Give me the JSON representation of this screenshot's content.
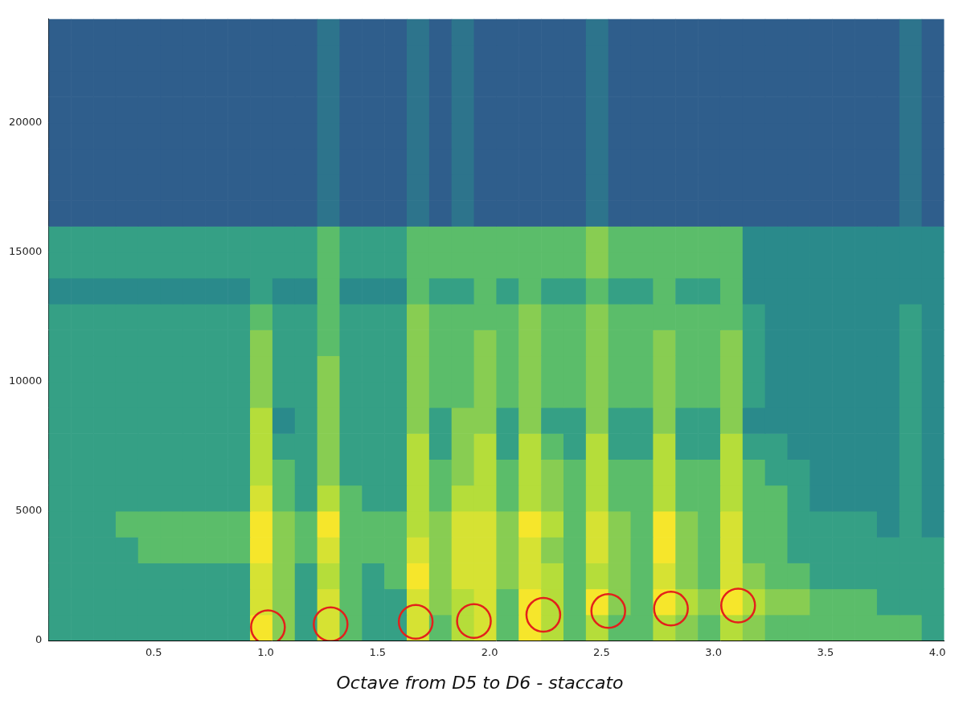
{
  "chart_data": {
    "type": "heatmap",
    "title": "Octave from D5 to D6 - staccato",
    "xlim": [
      0.03,
      4.03
    ],
    "ylim": [
      0,
      24000
    ],
    "xticks": [
      0.5,
      {
        "value": 1,
        "label": "1.0"
      },
      1.5,
      {
        "value": 2,
        "label": "2.0"
      },
      2.5,
      {
        "value": 3,
        "label": "3.0"
      },
      3.5,
      {
        "value": 4,
        "label": "4.0"
      }
    ],
    "yticks": [
      0,
      5000,
      10000,
      15000,
      20000
    ],
    "grid": false,
    "x_bins": [
      0.03,
      0.13,
      0.23,
      0.33,
      0.43,
      0.53,
      0.63,
      0.73,
      0.83,
      0.93,
      1.03,
      1.13,
      1.23,
      1.33,
      1.43,
      1.53,
      1.63,
      1.73,
      1.83,
      1.93,
      2.03,
      2.13,
      2.23,
      2.33,
      2.43,
      2.53,
      2.63,
      2.73,
      2.83,
      2.93,
      3.03,
      3.13,
      3.23,
      3.33,
      3.43,
      3.53,
      3.63,
      3.73,
      3.83,
      3.93,
      4.03
    ],
    "y_bins": [
      0,
      1000,
      2000,
      3000,
      4000,
      5000,
      6000,
      7000,
      8000,
      9000,
      10000,
      11000,
      12000,
      13000,
      14000,
      15000,
      16000,
      17000,
      18000,
      19000,
      20000,
      21000,
      22000,
      23000,
      24000
    ],
    "cells": [
      [
        4,
        4,
        4,
        4,
        4,
        4,
        4,
        4,
        4,
        9,
        6,
        4,
        8,
        5,
        4,
        4,
        8,
        5,
        7,
        8,
        5,
        9,
        7,
        5,
        7,
        5,
        5,
        7,
        6,
        5,
        7,
        6,
        5,
        5,
        5,
        5,
        5,
        5,
        5,
        4
      ],
      [
        4,
        4,
        4,
        4,
        4,
        4,
        4,
        4,
        4,
        8,
        6,
        4,
        8,
        5,
        4,
        4,
        8,
        6,
        7,
        8,
        5,
        9,
        7,
        5,
        9,
        6,
        5,
        9,
        7,
        6,
        9,
        7,
        6,
        6,
        5,
        5,
        5,
        4,
        4,
        4
      ],
      [
        4,
        4,
        4,
        4,
        4,
        4,
        4,
        4,
        4,
        8,
        6,
        4,
        7,
        5,
        4,
        5,
        9,
        6,
        8,
        8,
        6,
        8,
        7,
        5,
        7,
        6,
        5,
        8,
        6,
        5,
        8,
        6,
        5,
        5,
        4,
        4,
        4,
        4,
        4,
        4
      ],
      [
        4,
        4,
        4,
        4,
        5,
        5,
        5,
        5,
        5,
        9,
        6,
        5,
        8,
        5,
        5,
        5,
        8,
        6,
        8,
        8,
        6,
        8,
        6,
        5,
        8,
        6,
        5,
        9,
        6,
        5,
        8,
        5,
        5,
        4,
        4,
        4,
        4,
        4,
        4,
        4
      ],
      [
        4,
        4,
        4,
        5,
        5,
        5,
        5,
        5,
        5,
        9,
        6,
        5,
        9,
        5,
        5,
        5,
        7,
        6,
        8,
        8,
        6,
        9,
        7,
        5,
        8,
        6,
        5,
        9,
        6,
        5,
        8,
        5,
        5,
        4,
        4,
        4,
        4,
        3,
        4,
        3
      ],
      [
        4,
        4,
        4,
        4,
        4,
        4,
        4,
        4,
        4,
        8,
        5,
        4,
        7,
        5,
        4,
        4,
        7,
        5,
        7,
        7,
        5,
        7,
        6,
        5,
        7,
        5,
        5,
        7,
        5,
        5,
        7,
        5,
        5,
        4,
        3,
        3,
        3,
        3,
        4,
        3
      ],
      [
        4,
        4,
        4,
        4,
        4,
        4,
        4,
        4,
        4,
        7,
        5,
        4,
        6,
        4,
        4,
        4,
        7,
        5,
        6,
        7,
        5,
        7,
        6,
        5,
        7,
        5,
        5,
        7,
        5,
        5,
        7,
        5,
        4,
        4,
        3,
        3,
        3,
        3,
        4,
        3
      ],
      [
        4,
        4,
        4,
        4,
        4,
        4,
        4,
        4,
        4,
        7,
        4,
        4,
        6,
        4,
        4,
        4,
        7,
        4,
        6,
        7,
        4,
        7,
        5,
        4,
        7,
        4,
        4,
        7,
        4,
        4,
        7,
        4,
        4,
        3,
        3,
        3,
        3,
        3,
        4,
        3
      ],
      [
        4,
        4,
        4,
        4,
        4,
        4,
        4,
        4,
        4,
        7,
        3,
        4,
        6,
        4,
        4,
        4,
        6,
        4,
        6,
        6,
        4,
        6,
        4,
        4,
        6,
        4,
        4,
        6,
        4,
        4,
        6,
        3,
        3,
        3,
        3,
        3,
        3,
        3,
        4,
        3
      ],
      [
        4,
        4,
        4,
        4,
        4,
        4,
        4,
        4,
        4,
        6,
        4,
        4,
        6,
        4,
        4,
        4,
        6,
        5,
        5,
        6,
        5,
        6,
        5,
        5,
        6,
        5,
        5,
        6,
        5,
        5,
        6,
        4,
        3,
        3,
        3,
        3,
        3,
        3,
        4,
        3
      ],
      [
        4,
        4,
        4,
        4,
        4,
        4,
        4,
        4,
        4,
        6,
        4,
        4,
        6,
        4,
        4,
        4,
        6,
        5,
        5,
        6,
        5,
        6,
        5,
        5,
        6,
        5,
        5,
        6,
        5,
        5,
        6,
        4,
        3,
        3,
        3,
        3,
        3,
        3,
        4,
        3
      ],
      [
        4,
        4,
        4,
        4,
        4,
        4,
        4,
        4,
        4,
        6,
        4,
        4,
        5,
        4,
        4,
        4,
        6,
        5,
        5,
        6,
        5,
        6,
        5,
        5,
        6,
        5,
        5,
        6,
        5,
        5,
        6,
        4,
        3,
        3,
        3,
        3,
        3,
        3,
        4,
        3
      ],
      [
        4,
        4,
        4,
        4,
        4,
        4,
        4,
        4,
        4,
        5,
        4,
        4,
        5,
        4,
        4,
        4,
        6,
        5,
        5,
        5,
        5,
        6,
        5,
        5,
        6,
        5,
        5,
        5,
        5,
        5,
        5,
        4,
        3,
        3,
        3,
        3,
        3,
        3,
        4,
        3
      ],
      [
        3,
        3,
        3,
        3,
        3,
        3,
        3,
        3,
        3,
        4,
        3,
        3,
        5,
        3,
        3,
        3,
        5,
        4,
        4,
        5,
        4,
        5,
        4,
        4,
        5,
        4,
        4,
        5,
        4,
        4,
        5,
        3,
        3,
        3,
        3,
        3,
        3,
        3,
        3,
        3
      ],
      [
        4,
        4,
        4,
        4,
        4,
        4,
        4,
        4,
        4,
        4,
        4,
        4,
        5,
        4,
        4,
        4,
        5,
        5,
        5,
        5,
        5,
        5,
        5,
        5,
        6,
        5,
        5,
        5,
        5,
        5,
        5,
        3,
        3,
        3,
        3,
        3,
        3,
        3,
        3,
        3
      ],
      [
        4,
        4,
        4,
        4,
        4,
        4,
        4,
        4,
        4,
        4,
        4,
        4,
        5,
        4,
        4,
        4,
        5,
        5,
        5,
        5,
        5,
        5,
        5,
        5,
        6,
        5,
        5,
        5,
        5,
        5,
        5,
        3,
        3,
        3,
        3,
        3,
        3,
        3,
        3,
        3
      ],
      [
        1,
        1,
        1,
        1,
        1,
        1,
        1,
        1,
        1,
        1,
        1,
        1,
        2,
        1,
        1,
        1,
        2,
        1,
        2,
        1,
        1,
        1,
        1,
        1,
        2,
        1,
        1,
        1,
        1,
        1,
        1,
        1,
        1,
        1,
        1,
        1,
        1,
        1,
        2,
        1
      ],
      [
        1,
        1,
        1,
        1,
        1,
        1,
        1,
        1,
        1,
        1,
        1,
        1,
        2,
        1,
        1,
        1,
        2,
        1,
        2,
        1,
        1,
        1,
        1,
        1,
        2,
        1,
        1,
        1,
        1,
        1,
        1,
        1,
        1,
        1,
        1,
        1,
        1,
        1,
        2,
        1
      ],
      [
        1,
        1,
        1,
        1,
        1,
        1,
        1,
        1,
        1,
        1,
        1,
        1,
        2,
        1,
        1,
        1,
        2,
        1,
        2,
        1,
        1,
        1,
        1,
        1,
        2,
        1,
        1,
        1,
        1,
        1,
        1,
        1,
        1,
        1,
        1,
        1,
        1,
        1,
        2,
        1
      ],
      [
        1,
        1,
        1,
        1,
        1,
        1,
        1,
        1,
        1,
        1,
        1,
        1,
        2,
        1,
        1,
        1,
        2,
        1,
        2,
        1,
        1,
        1,
        1,
        1,
        2,
        1,
        1,
        1,
        1,
        1,
        1,
        1,
        1,
        1,
        1,
        1,
        1,
        1,
        2,
        1
      ],
      [
        1,
        1,
        1,
        1,
        1,
        1,
        1,
        1,
        1,
        1,
        1,
        1,
        2,
        1,
        1,
        1,
        2,
        1,
        2,
        1,
        1,
        1,
        1,
        1,
        2,
        1,
        1,
        1,
        1,
        1,
        1,
        1,
        1,
        1,
        1,
        1,
        1,
        1,
        2,
        1
      ],
      [
        1,
        1,
        1,
        1,
        1,
        1,
        1,
        1,
        1,
        1,
        1,
        1,
        2,
        1,
        1,
        1,
        2,
        1,
        2,
        1,
        1,
        1,
        1,
        1,
        2,
        1,
        1,
        1,
        1,
        1,
        1,
        1,
        1,
        1,
        1,
        1,
        1,
        1,
        2,
        1
      ],
      [
        1,
        1,
        1,
        1,
        1,
        1,
        1,
        1,
        1,
        1,
        1,
        1,
        2,
        1,
        1,
        1,
        2,
        1,
        2,
        1,
        1,
        1,
        1,
        1,
        2,
        1,
        1,
        1,
        1,
        1,
        1,
        1,
        1,
        1,
        1,
        1,
        1,
        1,
        2,
        1
      ],
      [
        1,
        1,
        1,
        1,
        1,
        1,
        1,
        1,
        1,
        1,
        1,
        1,
        2,
        1,
        1,
        1,
        2,
        1,
        2,
        1,
        1,
        1,
        1,
        1,
        2,
        1,
        1,
        1,
        1,
        1,
        1,
        1,
        1,
        1,
        1,
        1,
        1,
        1,
        2,
        1
      ]
    ],
    "circles": {
      "color": "#e3201b",
      "marker": "circle",
      "points": [
        {
          "x": 1.01,
          "y": 510
        },
        {
          "x": 1.29,
          "y": 630
        },
        {
          "x": 1.67,
          "y": 720
        },
        {
          "x": 1.93,
          "y": 750
        },
        {
          "x": 2.24,
          "y": 990
        },
        {
          "x": 2.53,
          "y": 1140
        },
        {
          "x": 2.81,
          "y": 1230
        },
        {
          "x": 3.11,
          "y": 1350
        }
      ]
    }
  }
}
